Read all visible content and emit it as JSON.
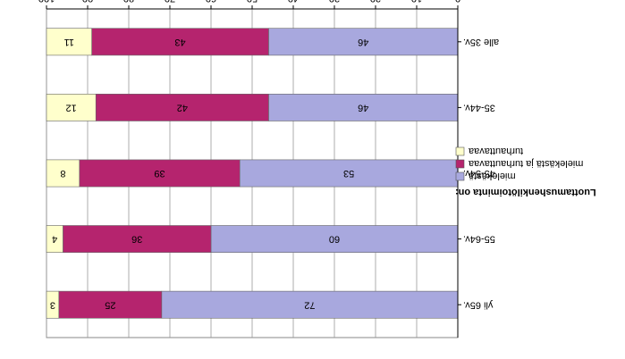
{
  "chart_data": {
    "type": "bar",
    "orientation": "horizontal",
    "stacked": true,
    "categories": [
      "yli 65v.",
      "55-64v.",
      "45-54v.",
      "35-44v.",
      "alle 35v."
    ],
    "series": [
      {
        "name": "mielekästä",
        "values": [
          72,
          60,
          53,
          46,
          46
        ],
        "color": "#a8a8de"
      },
      {
        "name": "mielekästä ja turhauttavaa",
        "values": [
          25,
          36,
          39,
          42,
          43
        ],
        "color": "#b5246e"
      },
      {
        "name": "turhauttavaa",
        "values": [
          3,
          4,
          8,
          12,
          11
        ],
        "color": "#ffffcc"
      }
    ],
    "legend_title": "Luottamushenkilötoiminta on:",
    "legend_position": "right",
    "xlim": [
      0,
      100
    ],
    "xticks": [
      0,
      10,
      20,
      30,
      40,
      50,
      60,
      70,
      80,
      90,
      100
    ],
    "grid": true,
    "display_rotation_deg": 180
  }
}
